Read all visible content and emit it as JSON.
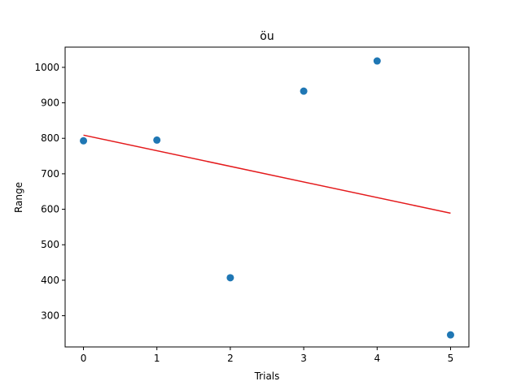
{
  "chart_data": {
    "type": "scatter",
    "title": "öu",
    "xlabel": "Trials",
    "ylabel": "Range",
    "xlim": [
      -0.25,
      5.25
    ],
    "ylim": [
      212,
      1057
    ],
    "xticks": [
      0,
      1,
      2,
      3,
      4,
      5
    ],
    "xtick_labels": [
      "0",
      "1",
      "2",
      "3",
      "4",
      "5"
    ],
    "yticks": [
      300,
      400,
      500,
      600,
      700,
      800,
      900,
      1000
    ],
    "ytick_labels": [
      "300",
      "400",
      "500",
      "600",
      "700",
      "800",
      "900",
      "1000"
    ],
    "grid": false,
    "legend": "none",
    "series": [
      {
        "type": "scatter",
        "x": [
          0,
          1,
          2,
          3,
          4,
          5
        ],
        "y": [
          793,
          795,
          407,
          933,
          1018,
          246
        ],
        "color": "#1f77b4"
      },
      {
        "type": "line",
        "x": [
          0,
          5
        ],
        "y": [
          809,
          589
        ],
        "color": "#e41a1c"
      }
    ]
  }
}
